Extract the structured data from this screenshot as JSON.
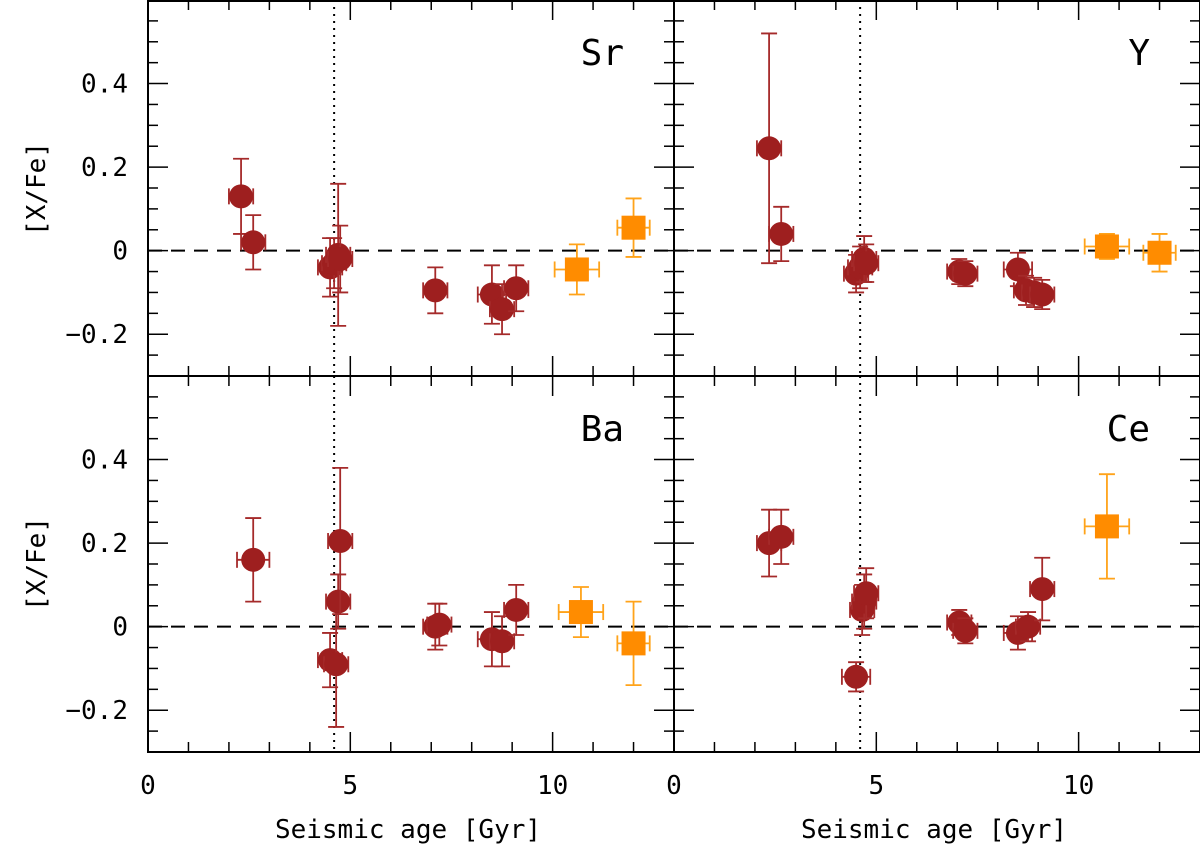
{
  "figure": {
    "xlabel": "Seismic age [Gyr]",
    "ylabel": "[X/Fe]"
  },
  "colors": {
    "red_giants": "#9e1f1f",
    "red_giants_err": "#a52a2a",
    "squares": "#ff8c00",
    "squares_err": "#ffa31a",
    "frame": "#000000"
  },
  "chart_data": [
    {
      "type": "scatter",
      "label": "Sr",
      "xlim": [
        0,
        13
      ],
      "ylim": [
        -0.3,
        0.6
      ],
      "xticks": [
        0,
        5,
        10
      ],
      "yticks": [
        -0.2,
        0,
        0.2,
        0.4
      ],
      "reference_lines": {
        "solar_age_x": 4.6,
        "zero_y": 0
      },
      "series": [
        {
          "marker": "circle",
          "points": [
            {
              "x": 2.3,
              "y": 0.13,
              "xerr": 0.3,
              "yerr": 0.09
            },
            {
              "x": 2.6,
              "y": 0.02,
              "xerr": 0.3,
              "yerr": 0.065
            },
            {
              "x": 4.5,
              "y": -0.04,
              "xerr": 0.3,
              "yerr": 0.07
            },
            {
              "x": 4.6,
              "y": -0.03,
              "xerr": 0.3,
              "yerr": 0.06
            },
            {
              "x": 4.7,
              "y": -0.01,
              "xerr": 0.3,
              "yerr": 0.17
            },
            {
              "x": 4.75,
              "y": -0.02,
              "xerr": 0.3,
              "yerr": 0.08
            },
            {
              "x": 7.1,
              "y": -0.095,
              "xerr": 0.3,
              "yerr": 0.055
            },
            {
              "x": 8.5,
              "y": -0.105,
              "xerr": 0.35,
              "yerr": 0.07
            },
            {
              "x": 8.75,
              "y": -0.14,
              "xerr": 0.3,
              "yerr": 0.06
            },
            {
              "x": 9.1,
              "y": -0.09,
              "xerr": 0.3,
              "yerr": 0.055
            }
          ]
        },
        {
          "marker": "square",
          "points": [
            {
              "x": 10.6,
              "y": -0.045,
              "xerr": 0.55,
              "yerr": 0.06
            },
            {
              "x": 12.0,
              "y": 0.055,
              "xerr": 0.4,
              "yerr": 0.07
            }
          ]
        }
      ]
    },
    {
      "type": "scatter",
      "label": "Y",
      "xlim": [
        0,
        13
      ],
      "ylim": [
        -0.3,
        0.6
      ],
      "xticks": [
        0,
        5,
        10
      ],
      "yticks": [
        -0.2,
        0,
        0.2,
        0.4
      ],
      "reference_lines": {
        "solar_age_x": 4.6,
        "zero_y": 0
      },
      "series": [
        {
          "marker": "circle",
          "points": [
            {
              "x": 2.35,
              "y": 0.245,
              "xerr": 0.3,
              "yerr": 0.275
            },
            {
              "x": 2.65,
              "y": 0.04,
              "xerr": 0.3,
              "yerr": 0.065
            },
            {
              "x": 4.5,
              "y": -0.055,
              "xerr": 0.3,
              "yerr": 0.045
            },
            {
              "x": 4.6,
              "y": -0.04,
              "xerr": 0.3,
              "yerr": 0.05
            },
            {
              "x": 4.7,
              "y": -0.02,
              "xerr": 0.3,
              "yerr": 0.055
            },
            {
              "x": 4.75,
              "y": -0.03,
              "xerr": 0.3,
              "yerr": 0.045
            },
            {
              "x": 7.05,
              "y": -0.05,
              "xerr": 0.3,
              "yerr": 0.03
            },
            {
              "x": 7.2,
              "y": -0.055,
              "xerr": 0.3,
              "yerr": 0.03
            },
            {
              "x": 8.5,
              "y": -0.045,
              "xerr": 0.35,
              "yerr": 0.04
            },
            {
              "x": 8.7,
              "y": -0.095,
              "xerr": 0.3,
              "yerr": 0.035
            },
            {
              "x": 8.9,
              "y": -0.1,
              "xerr": 0.3,
              "yerr": 0.035
            },
            {
              "x": 9.1,
              "y": -0.105,
              "xerr": 0.3,
              "yerr": 0.035
            }
          ]
        },
        {
          "marker": "square",
          "points": [
            {
              "x": 10.7,
              "y": 0.01,
              "xerr": 0.55,
              "yerr": 0.03
            },
            {
              "x": 12.0,
              "y": -0.005,
              "xerr": 0.4,
              "yerr": 0.045
            }
          ]
        }
      ]
    },
    {
      "type": "scatter",
      "label": "Ba",
      "xlim": [
        0,
        13
      ],
      "ylim": [
        -0.3,
        0.6
      ],
      "xticks": [
        0,
        5,
        10
      ],
      "yticks": [
        -0.2,
        0,
        0.2,
        0.4
      ],
      "reference_lines": {
        "solar_age_x": 4.6,
        "zero_y": 0
      },
      "series": [
        {
          "marker": "circle",
          "points": [
            {
              "x": 2.6,
              "y": 0.16,
              "xerr": 0.4,
              "yerr": 0.1
            },
            {
              "x": 4.5,
              "y": -0.08,
              "xerr": 0.3,
              "yerr": 0.065
            },
            {
              "x": 4.65,
              "y": -0.09,
              "xerr": 0.3,
              "yerr": 0.15
            },
            {
              "x": 4.7,
              "y": 0.06,
              "xerr": 0.3,
              "yerr": 0.065
            },
            {
              "x": 4.75,
              "y": 0.205,
              "xerr": 0.3,
              "yerr": 0.175
            },
            {
              "x": 7.1,
              "y": 0.0,
              "xerr": 0.3,
              "yerr": 0.055
            },
            {
              "x": 7.2,
              "y": 0.005,
              "xerr": 0.3,
              "yerr": 0.05
            },
            {
              "x": 8.5,
              "y": -0.03,
              "xerr": 0.35,
              "yerr": 0.065
            },
            {
              "x": 8.75,
              "y": -0.035,
              "xerr": 0.3,
              "yerr": 0.06
            },
            {
              "x": 9.1,
              "y": 0.04,
              "xerr": 0.3,
              "yerr": 0.06
            }
          ]
        },
        {
          "marker": "square",
          "points": [
            {
              "x": 10.7,
              "y": 0.035,
              "xerr": 0.55,
              "yerr": 0.06
            },
            {
              "x": 12.0,
              "y": -0.04,
              "xerr": 0.4,
              "yerr": 0.1
            }
          ]
        }
      ]
    },
    {
      "type": "scatter",
      "label": "Ce",
      "xlim": [
        0,
        13
      ],
      "ylim": [
        -0.3,
        0.6
      ],
      "xticks": [
        0,
        5,
        10
      ],
      "yticks": [
        -0.2,
        0,
        0.2,
        0.4
      ],
      "reference_lines": {
        "solar_age_x": 4.6,
        "zero_y": 0
      },
      "series": [
        {
          "marker": "circle",
          "points": [
            {
              "x": 2.35,
              "y": 0.2,
              "xerr": 0.3,
              "yerr": 0.08
            },
            {
              "x": 2.65,
              "y": 0.215,
              "xerr": 0.3,
              "yerr": 0.065
            },
            {
              "x": 4.5,
              "y": -0.12,
              "xerr": 0.35,
              "yerr": 0.035
            },
            {
              "x": 4.65,
              "y": 0.04,
              "xerr": 0.3,
              "yerr": 0.06
            },
            {
              "x": 4.7,
              "y": 0.06,
              "xerr": 0.3,
              "yerr": 0.065
            },
            {
              "x": 4.75,
              "y": 0.08,
              "xerr": 0.3,
              "yerr": 0.06
            },
            {
              "x": 7.05,
              "y": 0.01,
              "xerr": 0.3,
              "yerr": 0.03
            },
            {
              "x": 7.2,
              "y": -0.01,
              "xerr": 0.3,
              "yerr": 0.03
            },
            {
              "x": 8.5,
              "y": -0.015,
              "xerr": 0.35,
              "yerr": 0.04
            },
            {
              "x": 8.75,
              "y": 0.0,
              "xerr": 0.3,
              "yerr": 0.035
            },
            {
              "x": 9.1,
              "y": 0.09,
              "xerr": 0.3,
              "yerr": 0.075
            }
          ]
        },
        {
          "marker": "square",
          "points": [
            {
              "x": 10.7,
              "y": 0.24,
              "xerr": 0.55,
              "yerr": 0.125
            }
          ]
        }
      ]
    }
  ]
}
